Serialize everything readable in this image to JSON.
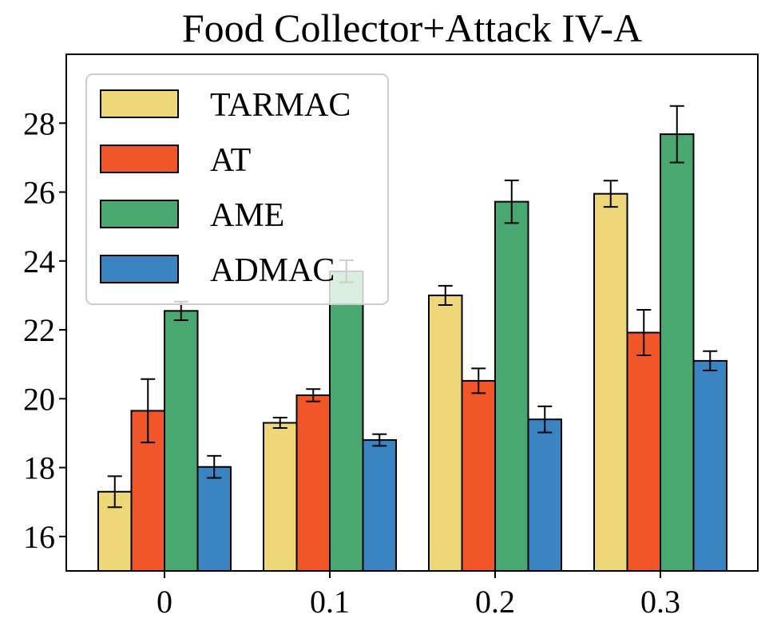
{
  "chart_data": {
    "type": "bar",
    "title": "Food Collector+Attack IV-A",
    "xlabel": "",
    "ylabel": "",
    "categories": [
      "0",
      "0.1",
      "0.2",
      "0.3"
    ],
    "ylim": [
      15,
      30
    ],
    "yticks": [
      16,
      18,
      20,
      22,
      24,
      26,
      28
    ],
    "ytick_labels": [
      "16",
      "18",
      "20",
      "22",
      "24",
      "26",
      "28"
    ],
    "legend_position": "upper-left",
    "grid": false,
    "series": [
      {
        "name": "TARMAC",
        "color": "#EDD778",
        "values": [
          17.3,
          19.3,
          23.0,
          25.95
        ],
        "errors": [
          0.45,
          0.15,
          0.28,
          0.38
        ]
      },
      {
        "name": "AT",
        "color": "#F05628",
        "values": [
          19.65,
          20.1,
          20.52,
          21.92
        ],
        "errors": [
          0.92,
          0.18,
          0.36,
          0.66
        ]
      },
      {
        "name": "AME",
        "color": "#48A870",
        "values": [
          22.55,
          23.7,
          25.72,
          27.68
        ],
        "errors": [
          0.27,
          0.32,
          0.62,
          0.82
        ]
      },
      {
        "name": "ADMAC",
        "color": "#3A84C2",
        "values": [
          18.02,
          18.8,
          19.4,
          21.1
        ],
        "errors": [
          0.32,
          0.17,
          0.38,
          0.28
        ]
      }
    ]
  }
}
